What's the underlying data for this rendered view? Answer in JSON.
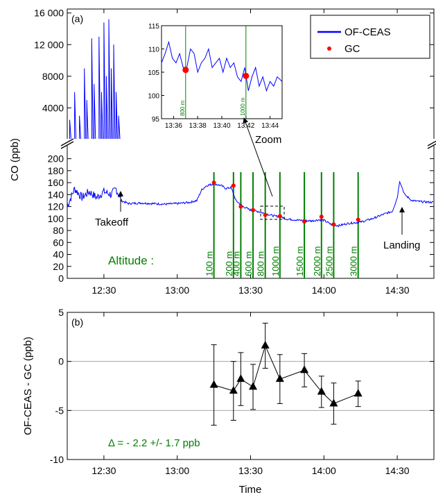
{
  "chart_data": [
    {
      "panel_label": "(a)",
      "type": "line",
      "ylabel": "CO (ppb)",
      "x_ticks": [
        "12:30",
        "13:00",
        "13:30",
        "14:00",
        "14:30"
      ],
      "y_ticks_lower": [
        "0",
        "20",
        "40",
        "60",
        "80",
        "100",
        "120",
        "140",
        "160",
        "180",
        "200"
      ],
      "y_ticks_upper": [
        "4000",
        "8000",
        "12 000",
        "16 000"
      ],
      "ylim_lower": [
        0,
        210
      ],
      "ylim_upper": [
        0,
        16500
      ],
      "xlim": [
        "12:15",
        "14:45"
      ],
      "legend": {
        "position": "top-right",
        "entries": [
          {
            "name": "OF-CEAS",
            "color": "#0000ff",
            "kind": "line"
          },
          {
            "name": "GC",
            "color": "#ff0000",
            "kind": "dot"
          }
        ]
      },
      "series": [
        {
          "name": "OF-CEAS",
          "color": "#0000ff",
          "points": [
            [
              "12:15",
              120
            ],
            [
              "12:18",
              150
            ],
            [
              "12:21",
              135
            ],
            [
              "12:24",
              145
            ],
            [
              "12:27",
              135
            ],
            [
              "12:30",
              145
            ],
            [
              "12:33",
              140
            ],
            [
              "12:35",
              150
            ],
            [
              "12:37",
              130
            ],
            [
              "12:40",
              125
            ],
            [
              "12:45",
              126
            ],
            [
              "12:50",
              125
            ],
            [
              "12:55",
              124
            ],
            [
              "13:00",
              125
            ],
            [
              "13:05",
              127
            ],
            [
              "13:08",
              130
            ],
            [
              "13:10",
              148
            ],
            [
              "13:12",
              155
            ],
            [
              "13:15",
              158
            ],
            [
              "13:18",
              155
            ],
            [
              "13:20",
              150
            ],
            [
              "13:22",
              152
            ],
            [
              "13:24",
              130
            ],
            [
              "13:27",
              120
            ],
            [
              "13:30",
              114
            ],
            [
              "13:33",
              112
            ],
            [
              "13:36",
              108
            ],
            [
              "13:38",
              106
            ],
            [
              "13:40",
              104
            ],
            [
              "13:42",
              103
            ],
            [
              "13:45",
              99
            ],
            [
              "13:48",
              98
            ],
            [
              "13:50",
              97
            ],
            [
              "13:55",
              96
            ],
            [
              "13:58",
              98
            ],
            [
              "14:00",
              97
            ],
            [
              "14:03",
              90
            ],
            [
              "14:06",
              88
            ],
            [
              "14:10",
              92
            ],
            [
              "14:15",
              94
            ],
            [
              "14:20",
              100
            ],
            [
              "14:25",
              108
            ],
            [
              "14:28",
              112
            ],
            [
              "14:30",
              135
            ],
            [
              "14:31",
              163
            ],
            [
              "14:33",
              140
            ],
            [
              "14:36",
              130
            ],
            [
              "14:40",
              128
            ],
            [
              "14:45",
              127
            ]
          ],
          "spikes_upper": [
            [
              "12:16",
              2500
            ],
            [
              "12:18",
              6000
            ],
            [
              "12:20",
              3000
            ],
            [
              "12:22",
              9000
            ],
            [
              "12:23",
              5000
            ],
            [
              "12:25",
              12800
            ],
            [
              "12:26",
              7000
            ],
            [
              "12:28",
              13000
            ],
            [
              "12:29",
              6000
            ],
            [
              "12:30",
              14800
            ],
            [
              "12:31",
              8000
            ],
            [
              "12:32",
              15200
            ],
            [
              "12:33",
              9000
            ],
            [
              "12:34",
              12000
            ],
            [
              "12:35",
              6000
            ],
            [
              "12:36",
              3000
            ]
          ]
        },
        {
          "name": "GC",
          "color": "#ff0000",
          "points": [
            [
              "13:15",
              160
            ],
            [
              "13:23",
              155
            ],
            [
              "13:26",
              120
            ],
            [
              "13:31",
              114
            ],
            [
              "13:36",
              106
            ],
            [
              "13:42",
              104
            ],
            [
              "13:52",
              95
            ],
            [
              "13:59",
              103
            ],
            [
              "14:04",
              90
            ],
            [
              "14:14",
              98
            ]
          ]
        }
      ],
      "altitude_label": "Altitude :",
      "altitude_lines": [
        {
          "time": "13:15",
          "label": "100 m"
        },
        {
          "time": "13:23",
          "label": "200 m"
        },
        {
          "time": "13:26",
          "label": "400 m"
        },
        {
          "time": "13:31",
          "label": "600 m"
        },
        {
          "time": "13:36",
          "label": "800 m"
        },
        {
          "time": "13:42",
          "label": "1000 m"
        },
        {
          "time": "13:52",
          "label": "1500 m"
        },
        {
          "time": "13:59",
          "label": "2000 m"
        },
        {
          "time": "14:04",
          "label": "2500 m"
        },
        {
          "time": "14:14",
          "label": "3000 m"
        }
      ],
      "annotations": [
        "Takeoff",
        "Landing",
        "Zoom"
      ],
      "inset": {
        "xlim": [
          "13:35",
          "13:45"
        ],
        "ylim": [
          95,
          115
        ],
        "x_ticks": [
          "13:36",
          "13:38",
          "13:40",
          "13:42",
          "13:44"
        ],
        "y_ticks": [
          "95",
          "100",
          "105",
          "110",
          "115"
        ],
        "lines": [
          {
            "time": "13:37",
            "label": "800 m"
          },
          {
            "time": "13:42",
            "label": "1000 m"
          }
        ],
        "gc_points": [
          [
            "13:37",
            105.5
          ],
          [
            "13:42",
            104.2
          ]
        ],
        "trace": [
          [
            "13:35.0",
            107
          ],
          [
            "13:35.3",
            109
          ],
          [
            "13:35.6",
            111.5
          ],
          [
            "13:35.9",
            108
          ],
          [
            "13:36.2",
            107
          ],
          [
            "13:36.5",
            109
          ],
          [
            "13:36.8",
            106
          ],
          [
            "13:37.1",
            106
          ],
          [
            "13:37.4",
            110
          ],
          [
            "13:37.7",
            109
          ],
          [
            "13:38.0",
            105
          ],
          [
            "13:38.3",
            107
          ],
          [
            "13:38.6",
            108
          ],
          [
            "13:38.9",
            110
          ],
          [
            "13:39.2",
            106
          ],
          [
            "13:39.5",
            107
          ],
          [
            "13:39.8",
            108
          ],
          [
            "13:40.1",
            105
          ],
          [
            "13:40.4",
            108
          ],
          [
            "13:40.7",
            106
          ],
          [
            "13:41.0",
            107
          ],
          [
            "13:41.3",
            104
          ],
          [
            "13:41.6",
            103
          ],
          [
            "13:41.9",
            106
          ],
          [
            "13:42.2",
            101
          ],
          [
            "13:42.5",
            104
          ],
          [
            "13:42.8",
            106
          ],
          [
            "13:43.1",
            102
          ],
          [
            "13:43.4",
            104
          ],
          [
            "13:43.7",
            101
          ],
          [
            "13:44.0",
            103
          ],
          [
            "13:44.3",
            102
          ],
          [
            "13:44.6",
            104
          ],
          [
            "13:45.0",
            103
          ]
        ]
      }
    },
    {
      "panel_label": "(b)",
      "type": "scatter",
      "xlabel": "Time",
      "ylabel": "OF-CEAS - GC (ppb)",
      "ylim": [
        -10,
        5
      ],
      "y_ticks": [
        "-10",
        "-5",
        "0",
        "5"
      ],
      "x_ticks": [
        "12:30",
        "13:00",
        "13:30",
        "14:00",
        "14:30"
      ],
      "grid": "horizontal at -5 and 0",
      "series": [
        {
          "name": "",
          "marker": "triangle",
          "points": [
            {
              "time": "13:15",
              "y": -2.4,
              "err": 4.1
            },
            {
              "time": "13:23",
              "y": -3.0,
              "err": 3.0
            },
            {
              "time": "13:26",
              "y": -1.8,
              "err": 2.7
            },
            {
              "time": "13:31",
              "y": -2.6,
              "err": 2.3
            },
            {
              "time": "13:36",
              "y": 1.6,
              "err": 2.3
            },
            {
              "time": "13:42",
              "y": -1.8,
              "err": 2.5
            },
            {
              "time": "13:52",
              "y": -0.9,
              "err": 1.7
            },
            {
              "time": "13:59",
              "y": -3.1,
              "err": 1.6
            },
            {
              "time": "14:04",
              "y": -4.3,
              "err": 2.1
            },
            {
              "time": "14:14",
              "y": -3.3,
              "err": 1.3
            }
          ]
        }
      ],
      "annotation": "Δ = - 2.2 +/- 1.7 ppb",
      "annotation_color": "#008000"
    }
  ]
}
